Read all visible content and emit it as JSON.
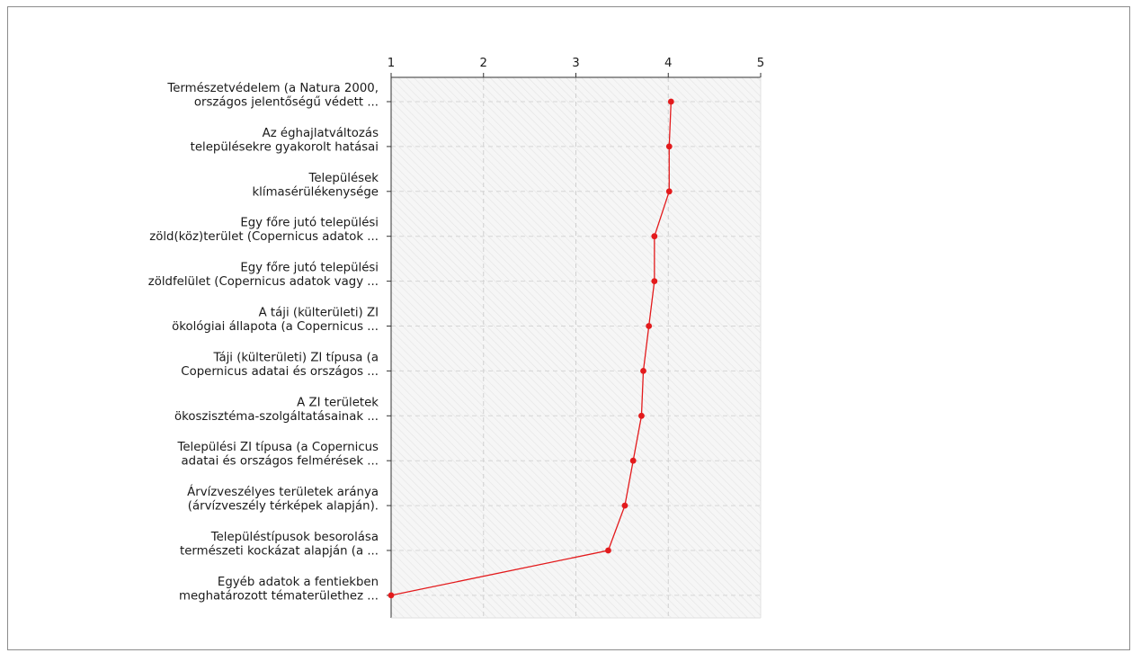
{
  "chart_data": {
    "type": "line",
    "orientation": "horizontal",
    "x_axis_position": "top",
    "xlim": [
      1,
      5
    ],
    "x_ticks": [
      "1",
      "2",
      "3",
      "4",
      "5"
    ],
    "grid": true,
    "legend": "none",
    "title": "",
    "xlabel": "",
    "ylabel": "",
    "line_color": "#e31a1c",
    "categories": [
      [
        "Természetvédelem (a Natura 2000,",
        "országos jelentőségű védett ..."
      ],
      [
        "Az éghajlatváltozás",
        "településekre gyakorolt hatásai"
      ],
      [
        "Települések",
        "klímasérülékenysége"
      ],
      [
        "Egy főre jutó települési",
        "zöld(köz)terület (Copernicus adatok ..."
      ],
      [
        "Egy főre jutó települési",
        "zöldfelület (Copernicus adatok vagy ..."
      ],
      [
        "A táji (külterületi) ZI",
        "ökológiai állapota (a Copernicus ..."
      ],
      [
        "Táji (külterületi) ZI típusa (a",
        "Copernicus adatai és országos ..."
      ],
      [
        "A ZI területek",
        "ökoszisztéma-szolgáltatásainak ..."
      ],
      [
        "Települési ZI típusa (a Copernicus",
        "adatai és országos felmérések ..."
      ],
      [
        "Árvízveszélyes területek aránya",
        "(árvízveszély térképek alapján)."
      ],
      [
        "Településtípusok besorolása",
        "természeti kockázat alapján (a ..."
      ],
      [
        "Egyéb adatok a fentiekben",
        "meghatározott tématerülethez ..."
      ]
    ],
    "values": [
      4.03,
      4.01,
      4.01,
      3.85,
      3.85,
      3.79,
      3.73,
      3.71,
      3.62,
      3.53,
      3.35,
      1.0
    ]
  }
}
